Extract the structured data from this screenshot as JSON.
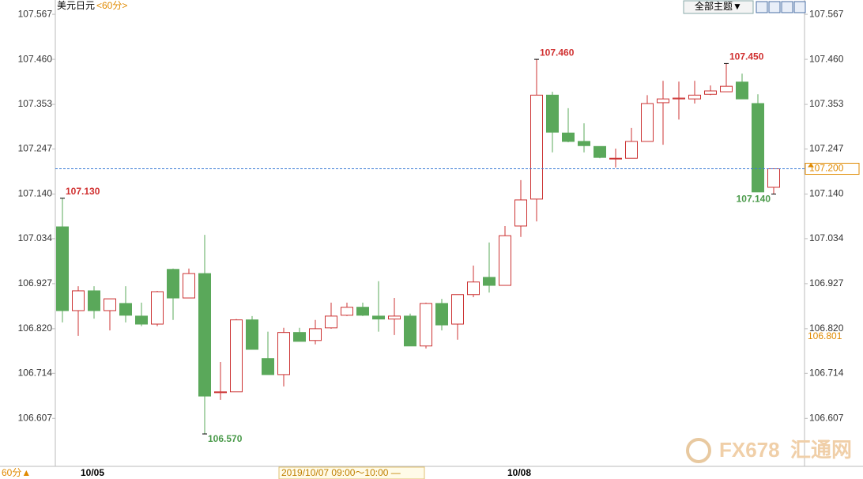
{
  "header": {
    "symbol": "美元日元",
    "period": "<60分>",
    "theme_button": "全部主题▼"
  },
  "chart_data": {
    "type": "candlestick",
    "up_color": "#cc3333",
    "down_color": "#5aa85a",
    "categories": [
      null,
      null,
      "10/05",
      null,
      null,
      null,
      null,
      null,
      null,
      null,
      null,
      null,
      null,
      null,
      null,
      null,
      null,
      null,
      null,
      null,
      null,
      null,
      null,
      null,
      null,
      null,
      null,
      null,
      null,
      "10/08",
      null,
      null,
      null,
      null,
      null,
      null,
      null,
      null,
      null,
      null,
      null,
      null,
      null,
      null,
      null,
      null
    ],
    "open": [
      107.062,
      106.863,
      106.91,
      106.863,
      106.88,
      106.85,
      106.831,
      106.961,
      106.893,
      106.951,
      106.668,
      106.67,
      106.841,
      106.749,
      106.711,
      106.811,
      106.792,
      106.822,
      106.852,
      106.871,
      106.85,
      106.843,
      106.85,
      106.779,
      106.88,
      106.831,
      106.901,
      106.942,
      106.923,
      107.064,
      107.128,
      107.375,
      107.285,
      107.265,
      107.253,
      107.224,
      107.225,
      107.265,
      107.357,
      107.366,
      107.366,
      107.377,
      107.383,
      107.406,
      107.355,
      107.156
    ],
    "high": [
      107.13,
      106.921,
      106.921,
      106.891,
      106.921,
      106.882,
      106.91,
      106.963,
      106.963,
      107.043,
      106.741,
      106.843,
      106.85,
      106.813,
      106.822,
      106.822,
      106.841,
      106.882,
      106.882,
      106.882,
      106.933,
      106.893,
      106.856,
      106.882,
      106.891,
      106.901,
      106.97,
      107.025,
      107.064,
      107.173,
      107.46,
      107.383,
      107.344,
      107.308,
      107.253,
      107.248,
      107.297,
      107.375,
      107.409,
      107.407,
      107.409,
      107.398,
      107.45,
      107.426,
      107.377,
      107.2
    ],
    "low": [
      106.835,
      106.803,
      106.844,
      106.816,
      106.835,
      106.826,
      106.826,
      106.841,
      106.893,
      106.57,
      106.651,
      106.67,
      106.771,
      106.711,
      106.683,
      106.79,
      106.783,
      106.82,
      106.85,
      106.85,
      106.813,
      106.805,
      106.779,
      106.773,
      106.816,
      106.794,
      106.895,
      106.906,
      106.923,
      107.038,
      107.075,
      107.239,
      107.263,
      107.239,
      107.225,
      107.203,
      107.225,
      107.265,
      107.257,
      107.317,
      107.355,
      107.375,
      107.383,
      107.366,
      107.145,
      107.14
    ],
    "close": [
      106.863,
      106.91,
      106.863,
      106.891,
      106.852,
      106.831,
      106.908,
      106.893,
      106.951,
      106.66,
      106.67,
      106.841,
      106.771,
      106.711,
      106.811,
      106.79,
      106.82,
      106.85,
      106.871,
      106.852,
      106.843,
      106.85,
      106.779,
      106.88,
      106.829,
      106.901,
      106.931,
      106.923,
      107.041,
      107.126,
      107.375,
      107.287,
      107.265,
      107.255,
      107.227,
      107.225,
      107.265,
      107.355,
      107.366,
      107.368,
      107.375,
      107.385,
      107.396,
      107.366,
      107.145,
      107.2
    ],
    "ylim": [
      106.493,
      107.601
    ],
    "yticks": [
      {
        "value": 106.607,
        "label": "106.607"
      },
      {
        "value": 106.714,
        "label": "106.714"
      },
      {
        "value": 106.82,
        "label": "106.820"
      },
      {
        "value": 106.927,
        "label": "106.927"
      },
      {
        "value": 107.034,
        "label": "107.034"
      },
      {
        "value": 107.14,
        "label": "107.140"
      },
      {
        "value": 107.247,
        "label": "107.247"
      },
      {
        "value": 107.353,
        "label": "107.353"
      },
      {
        "value": 107.46,
        "label": "107.460"
      },
      {
        "value": 107.567,
        "label": "107.567"
      }
    ],
    "annotations": [
      {
        "value": 107.13,
        "label": "107.130"
      },
      {
        "value": 106.57,
        "label": "106.570"
      },
      {
        "value": 107.46,
        "label": "107.460"
      },
      {
        "value": 107.45,
        "label": "107.450"
      },
      {
        "value": 107.14,
        "label": "107.140"
      }
    ],
    "current_price": {
      "value": 107.2,
      "label": "107.200"
    },
    "marker_price": {
      "value": 106.801,
      "label": "106.801"
    }
  },
  "footer": {
    "period": "60分▲",
    "range": "2019/10/07 09:00～10:00 —"
  },
  "watermark": {
    "brand": "FX678",
    "name": "汇通网"
  }
}
